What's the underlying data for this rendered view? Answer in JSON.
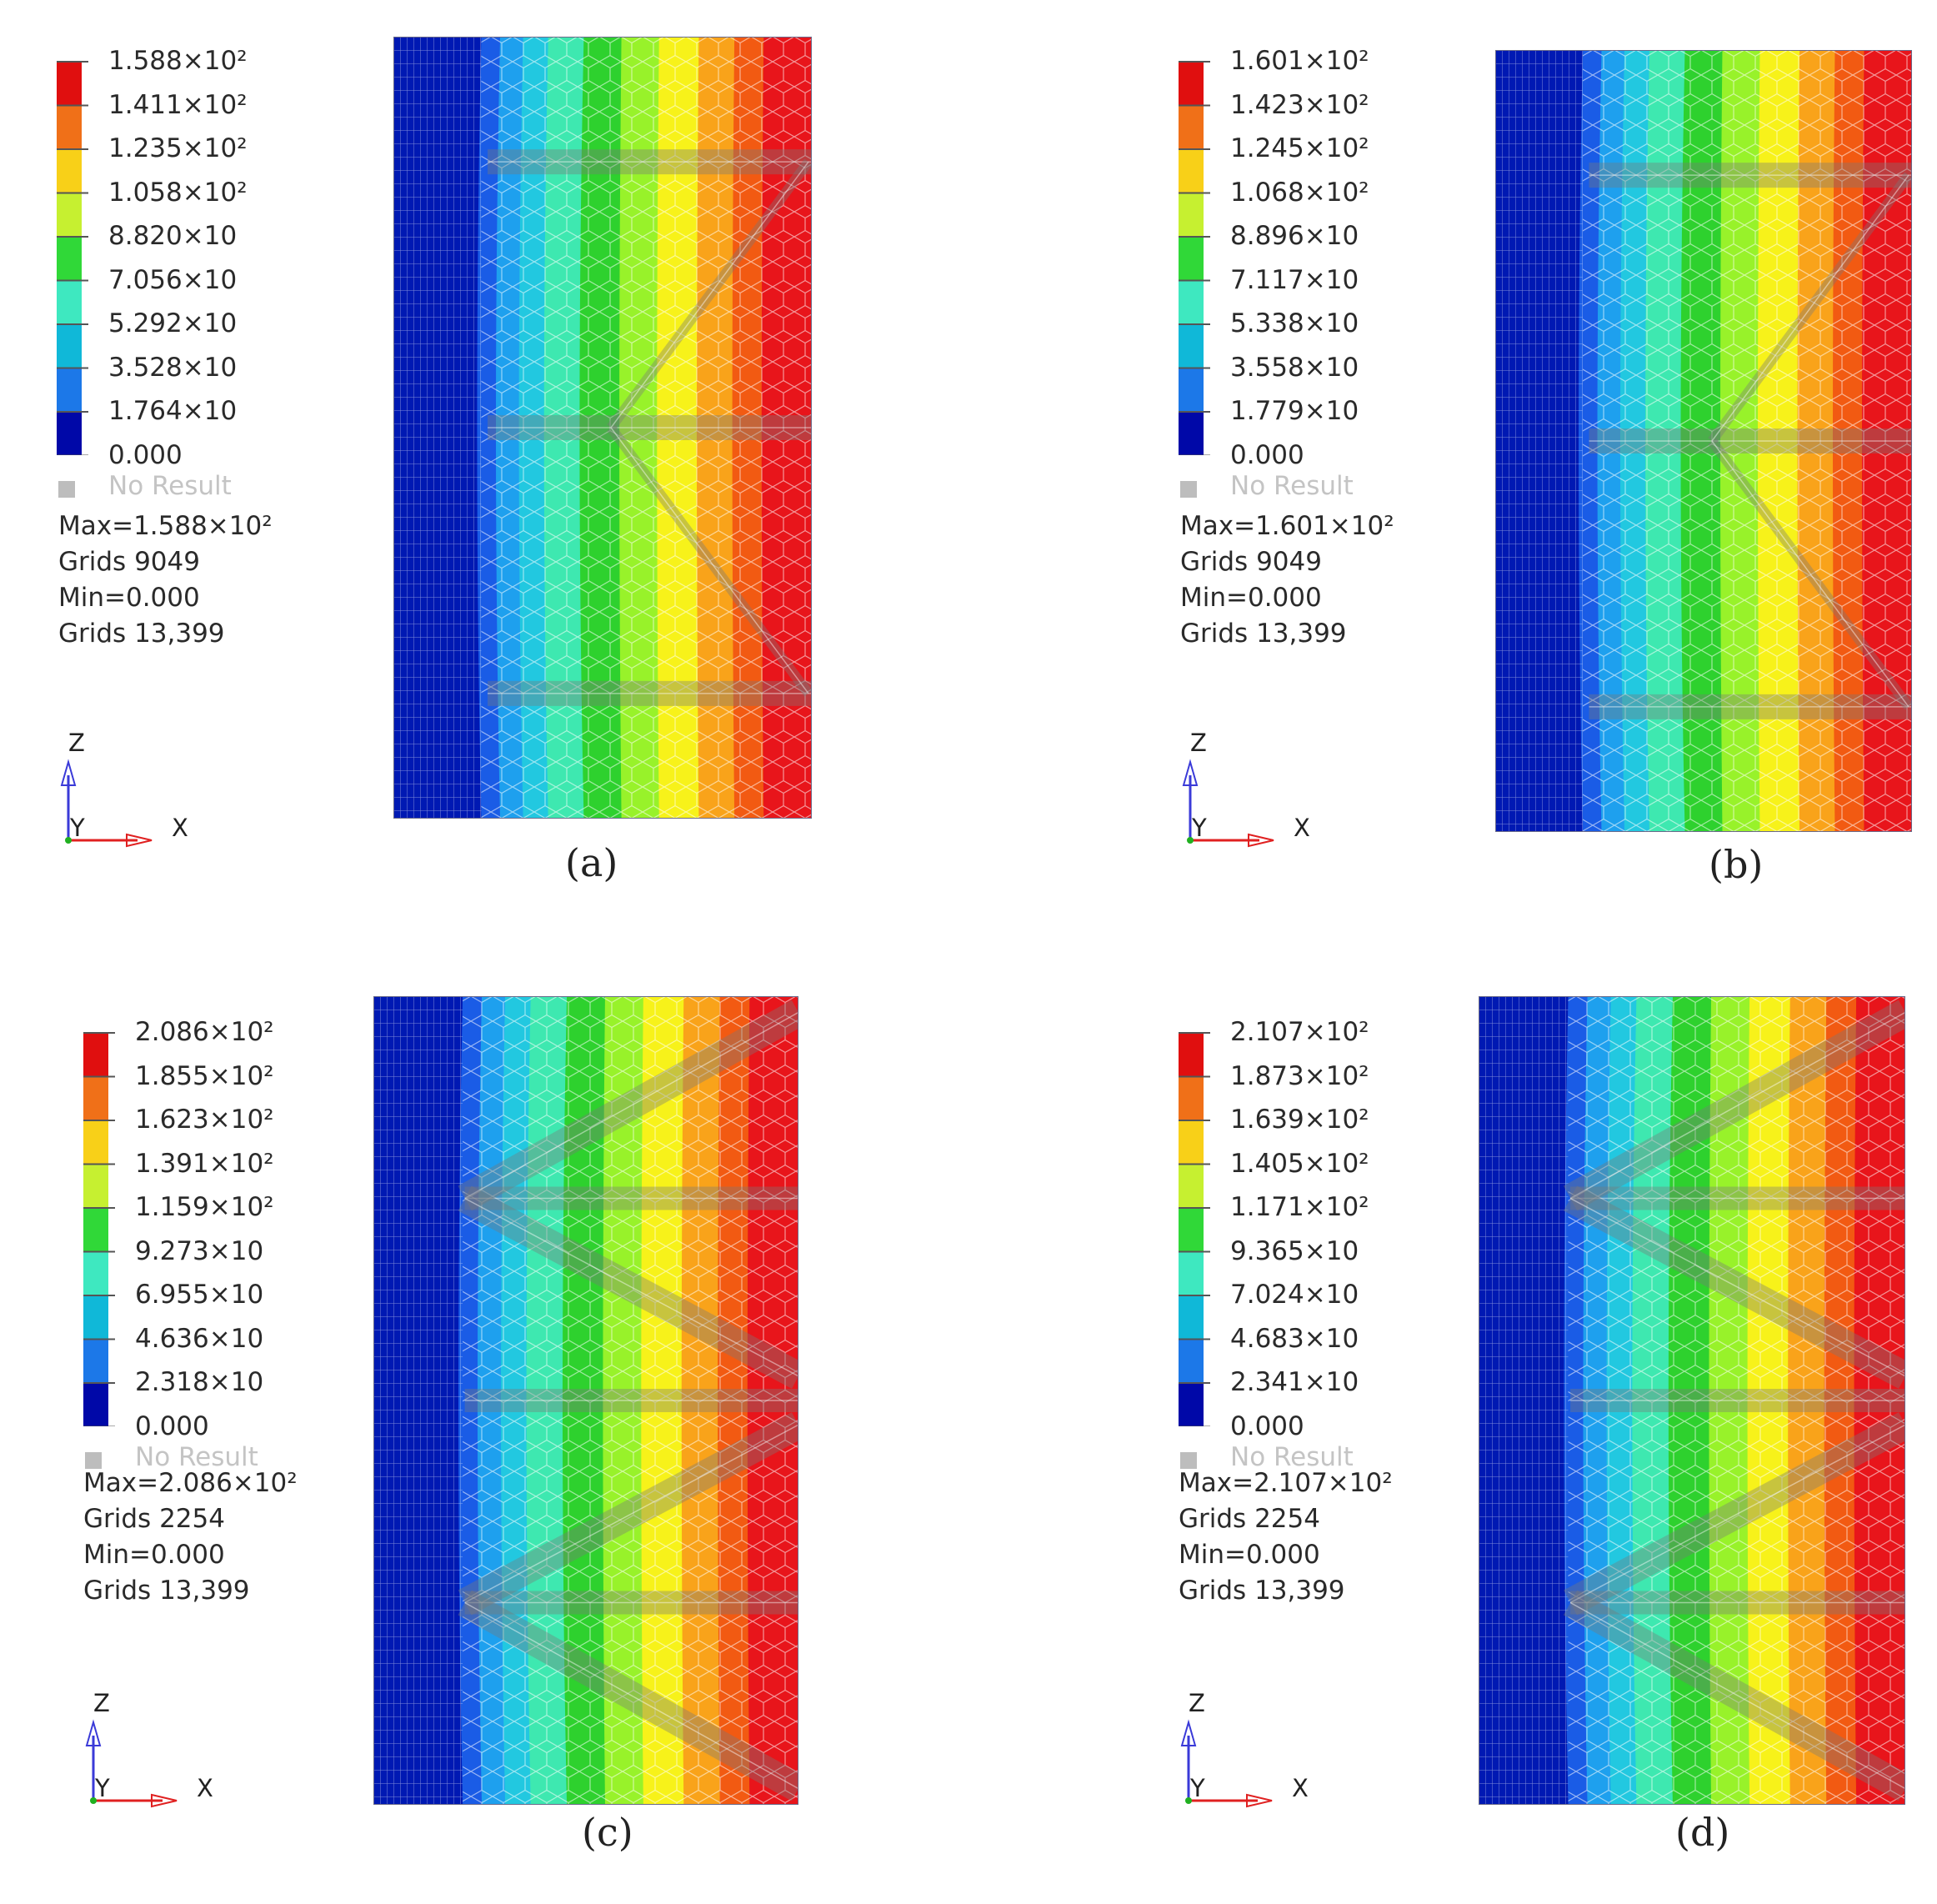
{
  "panels": [
    {
      "id": "a",
      "caption": "(a)",
      "legend": {
        "labels": [
          "1.588×10²",
          "1.411×10²",
          "1.235×10²",
          "1.058×10²",
          "8.820×10",
          "7.056×10",
          "5.292×10",
          "3.528×10",
          "1.764×10",
          "0.000"
        ],
        "no_result": "No Result"
      },
      "info": {
        "max": "Max=1.588×10²",
        "max_grid": "Grids 9049",
        "min": "Min=0.000",
        "min_grid": "Grids 13,399"
      },
      "axes": {
        "z": "Z",
        "y": "Y",
        "x": "X"
      },
      "structure": "single-v"
    },
    {
      "id": "b",
      "caption": "(b)",
      "legend": {
        "labels": [
          "1.601×10²",
          "1.423×10²",
          "1.245×10²",
          "1.068×10²",
          "8.896×10",
          "7.117×10",
          "5.338×10",
          "3.558×10",
          "1.779×10",
          "0.000"
        ],
        "no_result": "No Result"
      },
      "info": {
        "max": "Max=1.601×10²",
        "max_grid": "Grids 9049",
        "min": "Min=0.000",
        "min_grid": "Grids 13,399"
      },
      "axes": {
        "z": "Z",
        "y": "Y",
        "x": "X"
      },
      "structure": "single-v"
    },
    {
      "id": "c",
      "caption": "(c)",
      "legend": {
        "labels": [
          "2.086×10²",
          "1.855×10²",
          "1.623×10²",
          "1.391×10²",
          "1.159×10²",
          "9.273×10",
          "6.955×10",
          "4.636×10",
          "2.318×10",
          "0.000"
        ],
        "no_result": "No Result"
      },
      "info": {
        "max": "Max=2.086×10²",
        "max_grid": "Grids 2254",
        "min": "Min=0.000",
        "min_grid": "Grids 13,399"
      },
      "axes": {
        "z": "Z",
        "y": "Y",
        "x": "X"
      },
      "structure": "double-v"
    },
    {
      "id": "d",
      "caption": "(d)",
      "legend": {
        "labels": [
          "2.107×10²",
          "1.873×10²",
          "1.639×10²",
          "1.405×10²",
          "1.171×10²",
          "9.365×10",
          "7.024×10",
          "4.683×10",
          "2.341×10",
          "0.000"
        ],
        "no_result": "No Result"
      },
      "info": {
        "max": "Max=2.107×10²",
        "max_grid": "Grids 2254",
        "min": "Min=0.000",
        "min_grid": "Grids 13,399"
      },
      "axes": {
        "z": "Z",
        "y": "Y",
        "x": "X"
      },
      "structure": "double-v"
    }
  ],
  "colors": {
    "bands": [
      "#0019b3",
      "#1a5ce6",
      "#1ea0ee",
      "#22c8e0",
      "#3ee8b0",
      "#2ed12e",
      "#98f22a",
      "#f7f21a",
      "#f9a31a",
      "#f25a12",
      "#e8151b"
    ],
    "legend_swatches": [
      "#e00f0f",
      "#f07018",
      "#f8d018",
      "#c6f030",
      "#30d838",
      "#3ee8c0",
      "#10b8d8",
      "#1c78e8",
      "#0008a8"
    ],
    "axis_z": "#3a3ad8",
    "axis_x": "#e02020",
    "axis_y": "#20b020"
  }
}
